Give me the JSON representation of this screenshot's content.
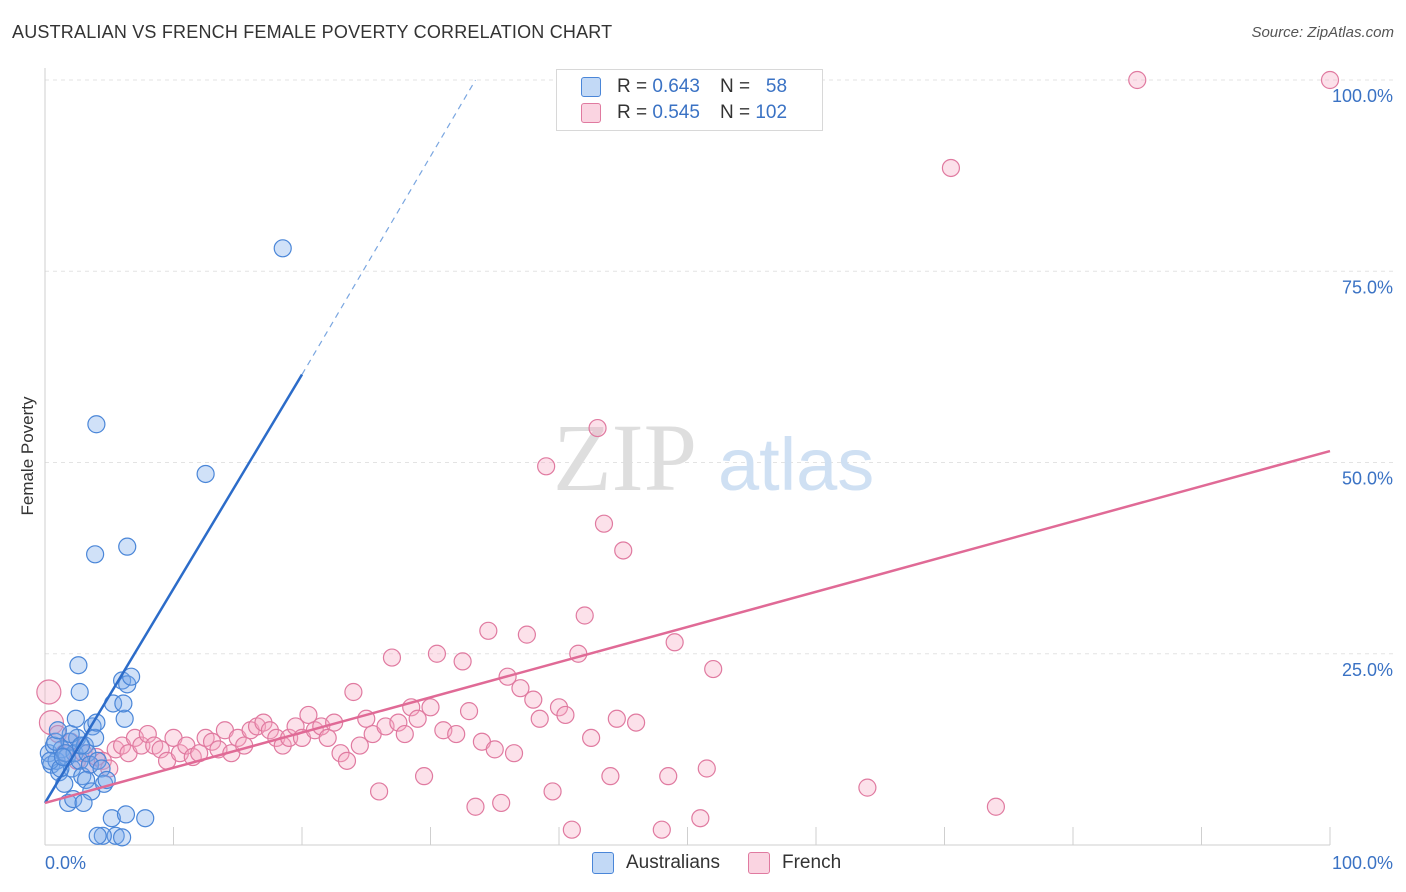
{
  "title": "AUSTRALIAN VS FRENCH FEMALE POVERTY CORRELATION CHART",
  "source": "Source: ZipAtlas.com",
  "watermark": {
    "zip": "ZIP",
    "atlas": "atlas"
  },
  "colors": {
    "australians": "#4a86d8",
    "australians_fill": "rgba(120,170,235,0.35)",
    "australians_line": "#2c6cc9",
    "french": "#e07aa0",
    "french_fill": "rgba(245,170,195,0.35)",
    "french_line": "#e06a96",
    "tick_label": "#3a72c4"
  },
  "legend": {
    "rows": [
      {
        "r_label": "R = ",
        "r_value": "0.643",
        "n_label": "N = ",
        "n_value": "58"
      },
      {
        "r_label": "R = ",
        "r_value": "0.545",
        "n_label": "N = ",
        "n_value": "102"
      }
    ]
  },
  "chart_data": {
    "type": "scatter",
    "title": "AUSTRALIAN VS FRENCH FEMALE POVERTY CORRELATION CHART",
    "xlabel": "",
    "ylabel": "Female Poverty",
    "xlim": [
      0,
      100
    ],
    "ylim": [
      0,
      100
    ],
    "x_tick_labels": [
      "0.0%",
      "100.0%"
    ],
    "y_ticks": [
      {
        "value": 25,
        "label": "25.0%"
      },
      {
        "value": 50,
        "label": "50.0%"
      },
      {
        "value": 75,
        "label": "75.0%"
      },
      {
        "value": 100,
        "label": "100.0%"
      }
    ],
    "grid": true,
    "legend_position": "bottom",
    "series": [
      {
        "name": "Australians",
        "points": [
          [
            0.3,
            12
          ],
          [
            0.5,
            10.5
          ],
          [
            0.7,
            13
          ],
          [
            0.9,
            11
          ],
          [
            1.1,
            9.5
          ],
          [
            1.3,
            12.5
          ],
          [
            1.5,
            8
          ],
          [
            1.7,
            11.5
          ],
          [
            1.9,
            13.5
          ],
          [
            2.1,
            10
          ],
          [
            2.3,
            12
          ],
          [
            2.5,
            14
          ],
          [
            2.7,
            11
          ],
          [
            2.9,
            9
          ],
          [
            3.1,
            13
          ],
          [
            3.3,
            12
          ],
          [
            3.5,
            10.5
          ],
          [
            3.7,
            15.5
          ],
          [
            3.9,
            14
          ],
          [
            4.1,
            11
          ],
          [
            0.4,
            11
          ],
          [
            0.8,
            13.5
          ],
          [
            1.2,
            10
          ],
          [
            1.6,
            12
          ],
          [
            2.0,
            14.5
          ],
          [
            2.4,
            16.5
          ],
          [
            2.8,
            13
          ],
          [
            3.2,
            8.5
          ],
          [
            3.6,
            7
          ],
          [
            4.4,
            10
          ],
          [
            4.6,
            8
          ],
          [
            4.8,
            8.5
          ],
          [
            5.2,
            3.5
          ],
          [
            5.5,
            1.2
          ],
          [
            6.0,
            1
          ],
          [
            6.3,
            4
          ],
          [
            1.8,
            5.5
          ],
          [
            2.2,
            6
          ],
          [
            2.6,
            23.5
          ],
          [
            2.7,
            20
          ],
          [
            4.0,
            16
          ],
          [
            6.0,
            21.5
          ],
          [
            6.4,
            21
          ],
          [
            6.7,
            22
          ],
          [
            6.2,
            16.5
          ],
          [
            5.3,
            18.5
          ],
          [
            6.1,
            18.5
          ],
          [
            4.5,
            1.2
          ],
          [
            7.8,
            3.5
          ],
          [
            4.1,
            1.2
          ],
          [
            3.9,
            38
          ],
          [
            4.0,
            55
          ],
          [
            6.4,
            39
          ],
          [
            12.5,
            48.5
          ],
          [
            18.5,
            78
          ],
          [
            1.0,
            15
          ],
          [
            1.4,
            11.5
          ],
          [
            3.0,
            5.5
          ]
        ],
        "trend": {
          "x": [
            0,
            20
          ],
          "y": [
            5.5,
            61.5
          ],
          "dashed_to": [
            33.5,
            100
          ]
        }
      },
      {
        "name": "French",
        "points": [
          [
            0.3,
            20
          ],
          [
            0.5,
            16
          ],
          [
            1.0,
            14.5
          ],
          [
            1.5,
            12
          ],
          [
            2.0,
            13.5
          ],
          [
            2.5,
            11
          ],
          [
            3.0,
            12
          ],
          [
            3.5,
            10.5
          ],
          [
            4.0,
            11.5
          ],
          [
            4.5,
            11
          ],
          [
            5.0,
            10
          ],
          [
            5.5,
            12.5
          ],
          [
            6.0,
            13
          ],
          [
            6.5,
            12
          ],
          [
            7.0,
            14
          ],
          [
            7.5,
            13
          ],
          [
            8.0,
            14.5
          ],
          [
            8.5,
            13
          ],
          [
            9.0,
            12.5
          ],
          [
            9.5,
            11
          ],
          [
            10.0,
            14
          ],
          [
            10.5,
            12
          ],
          [
            11.0,
            13
          ],
          [
            11.5,
            11.5
          ],
          [
            12.0,
            12
          ],
          [
            12.5,
            14
          ],
          [
            13.0,
            13.5
          ],
          [
            13.5,
            12.5
          ],
          [
            14.0,
            15
          ],
          [
            14.5,
            12
          ],
          [
            15.0,
            14
          ],
          [
            15.5,
            13
          ],
          [
            16.0,
            15
          ],
          [
            16.5,
            15.5
          ],
          [
            17.0,
            16
          ],
          [
            17.5,
            15
          ],
          [
            18.0,
            14
          ],
          [
            18.5,
            13
          ],
          [
            19.0,
            14
          ],
          [
            19.5,
            15.5
          ],
          [
            20.0,
            14
          ],
          [
            20.5,
            17
          ],
          [
            21.0,
            15
          ],
          [
            21.5,
            15.5
          ],
          [
            22.0,
            14
          ],
          [
            22.5,
            16
          ],
          [
            23.0,
            12
          ],
          [
            23.5,
            11
          ],
          [
            24.0,
            20
          ],
          [
            24.5,
            13
          ],
          [
            25.0,
            16.5
          ],
          [
            25.5,
            14.5
          ],
          [
            26.0,
            7
          ],
          [
            26.5,
            15.5
          ],
          [
            27.0,
            24.5
          ],
          [
            27.5,
            16
          ],
          [
            28.0,
            14.5
          ],
          [
            28.5,
            18
          ],
          [
            29.0,
            16.5
          ],
          [
            29.5,
            9
          ],
          [
            30.0,
            18
          ],
          [
            30.5,
            25
          ],
          [
            31.0,
            15
          ],
          [
            32.0,
            14.5
          ],
          [
            32.5,
            24
          ],
          [
            33.0,
            17.5
          ],
          [
            33.5,
            5
          ],
          [
            34.0,
            13.5
          ],
          [
            34.5,
            28
          ],
          [
            35.0,
            12.5
          ],
          [
            35.5,
            5.5
          ],
          [
            36.0,
            22
          ],
          [
            36.5,
            12
          ],
          [
            37.0,
            20.5
          ],
          [
            37.5,
            27.5
          ],
          [
            38.0,
            19
          ],
          [
            38.5,
            16.5
          ],
          [
            39.0,
            49.5
          ],
          [
            39.5,
            7
          ],
          [
            40.0,
            18
          ],
          [
            40.5,
            17
          ],
          [
            41.0,
            2
          ],
          [
            41.5,
            25
          ],
          [
            42.0,
            30
          ],
          [
            42.5,
            14
          ],
          [
            43.0,
            54.5
          ],
          [
            43.5,
            42
          ],
          [
            44.0,
            9
          ],
          [
            44.5,
            16.5
          ],
          [
            45.0,
            38.5
          ],
          [
            46.0,
            16
          ],
          [
            48.0,
            2
          ],
          [
            48.5,
            9
          ],
          [
            49.0,
            26.5
          ],
          [
            51.0,
            3.5
          ],
          [
            51.5,
            10
          ],
          [
            52.0,
            23
          ],
          [
            64.0,
            7.5
          ],
          [
            74.0,
            5
          ],
          [
            70.5,
            88.5
          ],
          [
            85.0,
            100
          ],
          [
            100,
            100
          ]
        ],
        "trend": {
          "x": [
            0,
            100
          ],
          "y": [
            5.5,
            51.5
          ]
        }
      }
    ]
  }
}
